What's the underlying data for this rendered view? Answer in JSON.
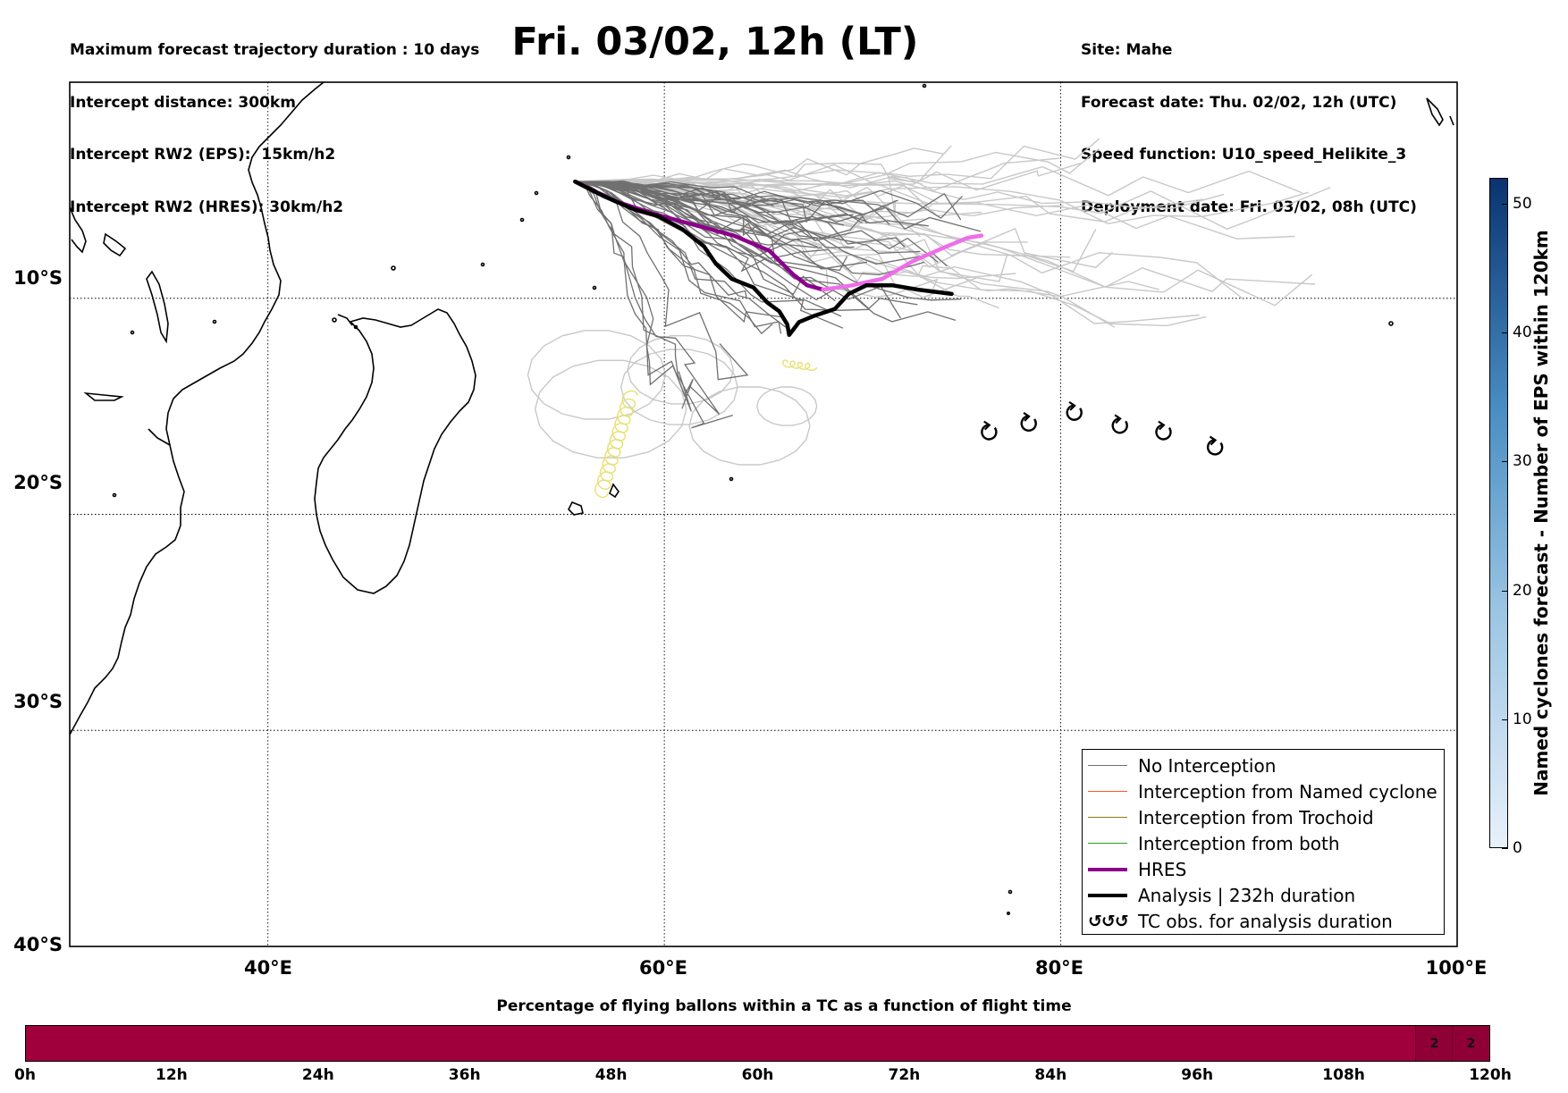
{
  "header": {
    "left_lines": [
      "Maximum forecast trajectory duration : 10 days",
      "Intercept distance: 300km",
      "Intercept RW2 (EPS):  15km/h2",
      "Intercept RW2 (HRES): 30km/h2"
    ],
    "title": "Fri. 03/02, 12h (LT)",
    "right_lines": [
      "Site: Mahe",
      "Forecast date: Thu. 02/02, 12h (UTC)",
      "Speed function: U10_speed_Helikite_3",
      "Deployment date: Fri. 03/02, 08h (UTC)"
    ]
  },
  "map": {
    "lon_range": [
      30,
      100
    ],
    "lat_range": [
      -40,
      0
    ],
    "lat_labels": [
      "10°S",
      "20°S",
      "30°S",
      "40°S"
    ],
    "lon_labels": [
      "40°E",
      "60°E",
      "80°E",
      "100°E"
    ],
    "gridlines": true,
    "launch_site": {
      "lon": 55.5,
      "lat": -4.6
    },
    "analysis_track": [
      [
        55.5,
        -4.6
      ],
      [
        57,
        -5.3
      ],
      [
        58.5,
        -5.9
      ],
      [
        59.7,
        -6.2
      ],
      [
        60.9,
        -6.8
      ],
      [
        62,
        -7.6
      ],
      [
        62.6,
        -8.4
      ],
      [
        63.4,
        -9.1
      ],
      [
        64.5,
        -9.5
      ],
      [
        65.2,
        -10.2
      ],
      [
        65.8,
        -10.6
      ],
      [
        66.2,
        -11.2
      ],
      [
        66.3,
        -11.7
      ],
      [
        66.8,
        -11.1
      ],
      [
        67.6,
        -10.8
      ],
      [
        68.6,
        -10.5
      ],
      [
        69.3,
        -9.8
      ],
      [
        70.2,
        -9.4
      ],
      [
        71.5,
        -9.4
      ],
      [
        72.8,
        -9.6
      ],
      [
        74.5,
        -9.8
      ]
    ],
    "hres_track": [
      [
        55.5,
        -4.6
      ],
      [
        57.5,
        -5.5
      ],
      [
        59.5,
        -6.1
      ],
      [
        61.5,
        -6.6
      ],
      [
        63.5,
        -7.1
      ],
      [
        65.3,
        -7.8
      ],
      [
        66.5,
        -8.9
      ],
      [
        67.2,
        -9.4
      ],
      [
        68,
        -9.6
      ],
      [
        69.5,
        -9.4
      ],
      [
        71,
        -9.1
      ],
      [
        72.5,
        -8.3
      ],
      [
        74,
        -7.7
      ],
      [
        75.3,
        -7.2
      ],
      [
        76,
        -7.1
      ]
    ],
    "tc_observations": [
      [
        76.4,
        -16.2
      ],
      [
        78.4,
        -15.8
      ],
      [
        80.7,
        -15.3
      ],
      [
        83,
        -15.9
      ],
      [
        85.2,
        -16.2
      ],
      [
        87.8,
        -16.9
      ]
    ],
    "colors": {
      "no_interception": "#707070",
      "no_interception_light": "#c8c8c8",
      "named_cyclone": "#ff5a1e",
      "trochoid": "#8b7a10",
      "both": "#2a9a2a",
      "hres": "#8b008b",
      "hres_late": "#ee6ee8",
      "analysis": "#000000",
      "trochoid_track": "#e8e070"
    }
  },
  "legend": {
    "items": [
      {
        "label": "No Interception",
        "color": "#707070",
        "width": 1
      },
      {
        "label": "Interception from Named cyclone",
        "color": "#ff5a1e",
        "width": 1
      },
      {
        "label": "Interception from Trochoid",
        "color": "#8b7a10",
        "width": 1
      },
      {
        "label": "Interception from both",
        "color": "#2a9a2a",
        "width": 1
      },
      {
        "label": "HRES",
        "color": "#8b008b",
        "width": 4
      },
      {
        "label": "Analysis | 232h duration",
        "color": "#000000",
        "width": 4
      }
    ],
    "tc_label": "TC obs. for analysis duration",
    "tc_glyph": "↺↺↺"
  },
  "colorbar": {
    "title": "Named cyclones forecast - Number of EPS within 120km",
    "ticks": [
      "0",
      "10",
      "20",
      "30",
      "40",
      "50"
    ],
    "range": [
      0,
      52
    ],
    "color_low": "#e8f1fb",
    "color_high": "#0a3370"
  },
  "percentage_bar": {
    "title": "Percentage of flying ballons within a TC as a function of flight time",
    "hour_labels": [
      "0h",
      "12h",
      "24h",
      "36h",
      "48h",
      "60h",
      "72h",
      "84h",
      "96h",
      "108h",
      "120h"
    ],
    "cells": [
      {
        "from_h": 114,
        "to_h": 117,
        "value": "2"
      },
      {
        "from_h": 117,
        "to_h": 120,
        "value": "2"
      }
    ],
    "bar_color": "#a0003c"
  }
}
